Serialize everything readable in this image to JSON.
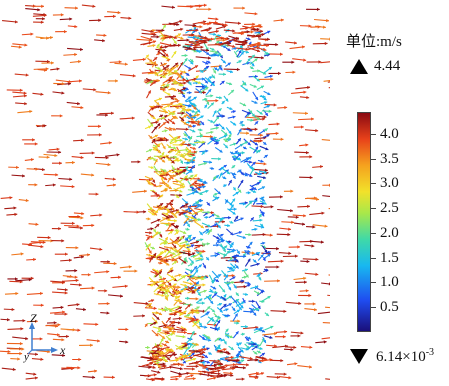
{
  "legend": {
    "unit_label": "单位:m/s",
    "max_value": "4.44",
    "min_value_base": "6.14×10",
    "min_value_exp": "-3",
    "ticks": [
      "4.0",
      "3.5",
      "3.0",
      "2.5",
      "2.0",
      "1.5",
      "1.0",
      "0.5"
    ],
    "tick_values": [
      4.0,
      3.5,
      3.0,
      2.5,
      2.0,
      1.5,
      1.0,
      0.5
    ],
    "range": [
      0.00614,
      4.44
    ]
  },
  "axes": {
    "vertical_label": "Z",
    "vertical_sub": "y",
    "horizontal_label": "x"
  },
  "colors": {
    "low": "#1a0f7a",
    "mid": "#3fd9a8",
    "high": "#8a0a12"
  }
}
